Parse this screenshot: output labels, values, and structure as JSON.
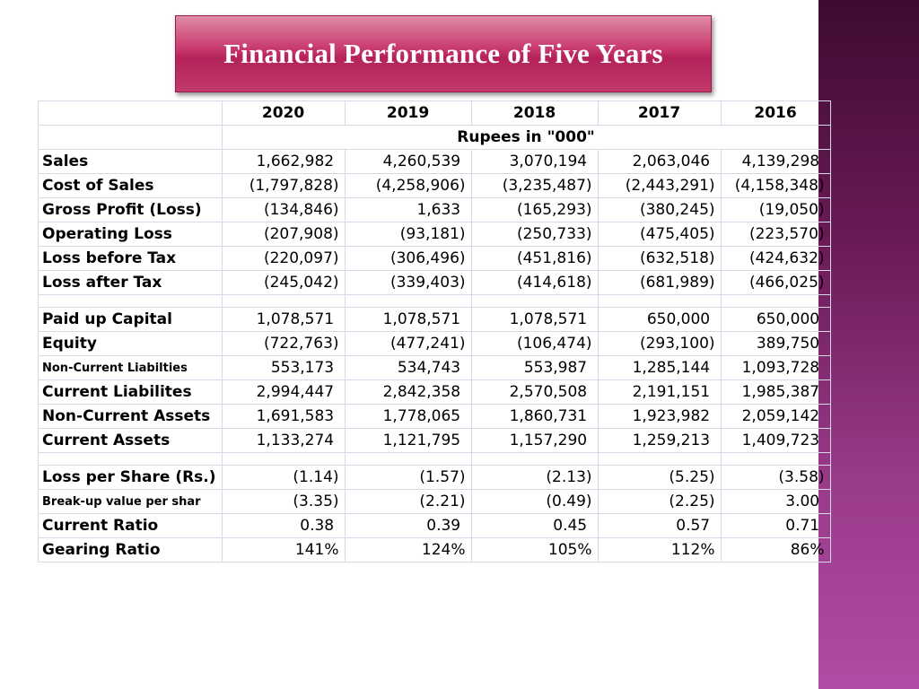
{
  "title": "Financial Performance of Five Years",
  "years": [
    "2020",
    "2019",
    "2018",
    "2017",
    "2016"
  ],
  "unit_note": "Rupees in \"000\"",
  "sections": [
    [
      {
        "label": "Sales",
        "values": [
          "1,662,982 ",
          "4,260,539 ",
          "3,070,194 ",
          "2,063,046 ",
          "4,139,298 "
        ]
      },
      {
        "label": "Cost of Sales",
        "values": [
          "(1,797,828)",
          "(4,258,906)",
          "(3,235,487)",
          "(2,443,291)",
          "(4,158,348)"
        ]
      },
      {
        "label": "Gross Profit (Loss)",
        "values": [
          "(134,846)",
          "1,633 ",
          "(165,293)",
          "(380,245)",
          "(19,050)"
        ]
      },
      {
        "label": "Operating Loss",
        "values": [
          "(207,908)",
          "(93,181)",
          "(250,733)",
          "(475,405)",
          "(223,570)"
        ]
      },
      {
        "label": "Loss before Tax",
        "values": [
          "(220,097)",
          "(306,496)",
          "(451,816)",
          "(632,518)",
          "(424,632)"
        ]
      },
      {
        "label": "Loss after Tax",
        "values": [
          "(245,042)",
          "(339,403)",
          "(414,618)",
          "(681,989)",
          "(466,025)"
        ]
      }
    ],
    [
      {
        "label": "Paid up Capital",
        "values": [
          "1,078,571 ",
          "1,078,571 ",
          "1,078,571 ",
          "650,000 ",
          "650,000 "
        ]
      },
      {
        "label": "Equity",
        "values": [
          "(722,763)",
          "(477,241)",
          "(106,474)",
          "(293,100)",
          "389,750 "
        ]
      },
      {
        "label": "Non-Current Liabilties",
        "small": true,
        "values": [
          "553,173 ",
          "534,743 ",
          "553,987 ",
          "1,285,144 ",
          "1,093,728 "
        ]
      },
      {
        "label": "Current Liabilites",
        "values": [
          "2,994,447 ",
          "2,842,358 ",
          "2,570,508 ",
          "2,191,151 ",
          "1,985,387 "
        ]
      },
      {
        "label": "Non-Current Assets",
        "values": [
          "1,691,583 ",
          "1,778,065 ",
          "1,860,731 ",
          "1,923,982 ",
          "2,059,142 "
        ]
      },
      {
        "label": "Current Assets",
        "values": [
          "1,133,274 ",
          "1,121,795 ",
          "1,157,290 ",
          "1,259,213 ",
          "1,409,723 "
        ]
      }
    ],
    [
      {
        "label": "Loss per Share (Rs.)",
        "values": [
          "(1.14)",
          "(1.57)",
          "(2.13)",
          "(5.25)",
          "(3.58)"
        ]
      },
      {
        "label": "Break-up value per shar",
        "small": true,
        "values": [
          "(3.35)",
          "(2.21)",
          "(0.49)",
          "(2.25)",
          "3.00 "
        ]
      },
      {
        "label": "Current Ratio",
        "values": [
          "0.38 ",
          "0.39 ",
          "0.45 ",
          "0.57 ",
          "0.71 "
        ]
      },
      {
        "label": "Gearing Ratio",
        "values": [
          "141%",
          "124%",
          "105%",
          "112%",
          "86%"
        ]
      }
    ]
  ]
}
